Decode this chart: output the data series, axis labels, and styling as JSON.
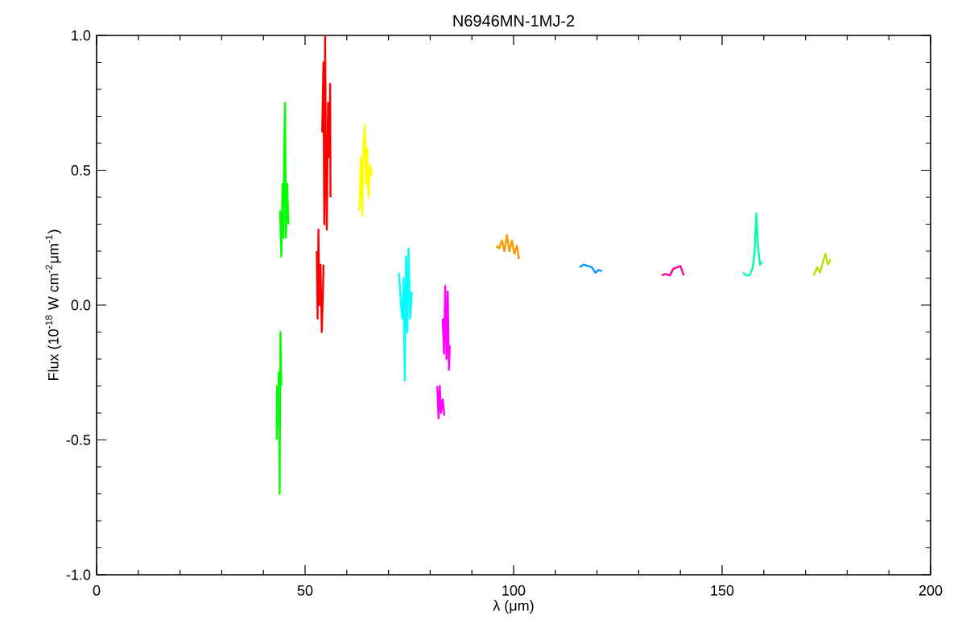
{
  "chart_data": {
    "type": "line",
    "title": "N6946MN-1MJ-2",
    "xlabel": "λ (μm)",
    "ylabel": "Flux (10$^{-18}$ W cm$^{-2}$μm$^{-1}$)",
    "xlim": [
      0,
      200
    ],
    "ylim": [
      -1,
      1
    ],
    "xticks": [
      0,
      50,
      100,
      150,
      200
    ],
    "yticks": [
      {
        "value": -1,
        "label": "-1.0"
      },
      {
        "value": -0.5,
        "label": "-0.5"
      },
      {
        "value": 0,
        "label": "0.0"
      },
      {
        "value": 0.5,
        "label": "0.5"
      },
      {
        "value": 1,
        "label": "1.0"
      }
    ],
    "series": [
      {
        "color": "#00ff00",
        "x": [
          43.2,
          43.3,
          43.5,
          43.7,
          43.9,
          44.0,
          44.1,
          44.3
        ],
        "values": [
          -0.5,
          -0.3,
          -0.45,
          -0.25,
          -0.7,
          -0.35,
          -0.1,
          -0.3
        ]
      },
      {
        "color": "#00ff00",
        "x": [
          44.0,
          44.3,
          44.6,
          44.8,
          45.0,
          45.2,
          45.4,
          45.7,
          46.0
        ],
        "values": [
          0.35,
          0.18,
          0.45,
          0.25,
          0.6,
          0.75,
          0.25,
          0.45,
          0.3
        ]
      },
      {
        "color": "#ff0000",
        "x": [
          52.8,
          53.0,
          53.2,
          53.4,
          53.7,
          54.0,
          54.3,
          54.4
        ],
        "values": [
          0.2,
          -0.05,
          0.28,
          0.0,
          0.15,
          -0.1,
          0.05,
          0.15
        ]
      },
      {
        "color": "#ff0000",
        "x": [
          54.1,
          54.4,
          54.6,
          54.8,
          55.0,
          55.2,
          55.5,
          55.8,
          56.0,
          56.1
        ],
        "values": [
          0.64,
          0.9,
          0.3,
          1.0,
          0.5,
          0.28,
          0.75,
          0.55,
          0.82,
          0.4
        ]
      },
      {
        "color": "#ffff00",
        "x": [
          63.0,
          63.4,
          63.7,
          64.0,
          64.3,
          64.6,
          64.9,
          65.2,
          65.6,
          66.0
        ],
        "values": [
          0.35,
          0.55,
          0.33,
          0.6,
          0.67,
          0.45,
          0.58,
          0.4,
          0.52,
          0.48
        ]
      },
      {
        "color": "#00ffff",
        "x": [
          72.5,
          73.0,
          73.3,
          73.6,
          73.9,
          74.2,
          74.5,
          74.8,
          75.2,
          75.6
        ],
        "values": [
          0.12,
          0.0,
          -0.05,
          0.1,
          -0.28,
          0.18,
          -0.1,
          0.21,
          -0.05,
          0.05
        ]
      },
      {
        "color": "#ff00ff",
        "x": [
          81.7,
          82.0,
          82.3,
          82.6,
          83.0,
          83.4
        ],
        "values": [
          -0.3,
          -0.42,
          -0.3,
          -0.4,
          -0.35,
          -0.41
        ]
      },
      {
        "color": "#ff00ff",
        "x": [
          83.0,
          83.3,
          83.6,
          83.9,
          84.2,
          84.5,
          84.7
        ],
        "values": [
          -0.05,
          -0.18,
          0.07,
          -0.2,
          0.05,
          -0.24,
          -0.15
        ]
      },
      {
        "color": "#ff9900",
        "x": [
          95.8,
          96.5,
          97.2,
          97.8,
          98.4,
          99.0,
          99.6,
          100.2,
          100.8,
          101.3
        ],
        "values": [
          0.22,
          0.21,
          0.24,
          0.2,
          0.26,
          0.2,
          0.24,
          0.19,
          0.22,
          0.17
        ]
      },
      {
        "color": "#0099ff",
        "x": [
          115.8,
          116.8,
          117.8,
          118.8,
          119.6,
          120.4,
          121.2
        ],
        "values": [
          0.14,
          0.15,
          0.145,
          0.14,
          0.12,
          0.13,
          0.125
        ]
      },
      {
        "color": "#ff0099",
        "x": [
          135.5,
          136.5,
          137.5,
          138.3,
          139.2,
          140.0,
          140.8
        ],
        "values": [
          0.11,
          0.115,
          0.11,
          0.135,
          0.14,
          0.145,
          0.11
        ]
      },
      {
        "color": "#00ffaa",
        "x": [
          155.0,
          155.8,
          156.6,
          157.4,
          157.8,
          158.2,
          158.6,
          159.1,
          159.6
        ],
        "values": [
          0.12,
          0.11,
          0.11,
          0.14,
          0.2,
          0.34,
          0.22,
          0.15,
          0.16
        ]
      },
      {
        "color": "#bbdd00",
        "x": [
          172.0,
          172.8,
          173.5,
          174.2,
          174.8,
          175.4,
          176.0
        ],
        "values": [
          0.11,
          0.14,
          0.12,
          0.16,
          0.19,
          0.15,
          0.17
        ]
      }
    ]
  }
}
